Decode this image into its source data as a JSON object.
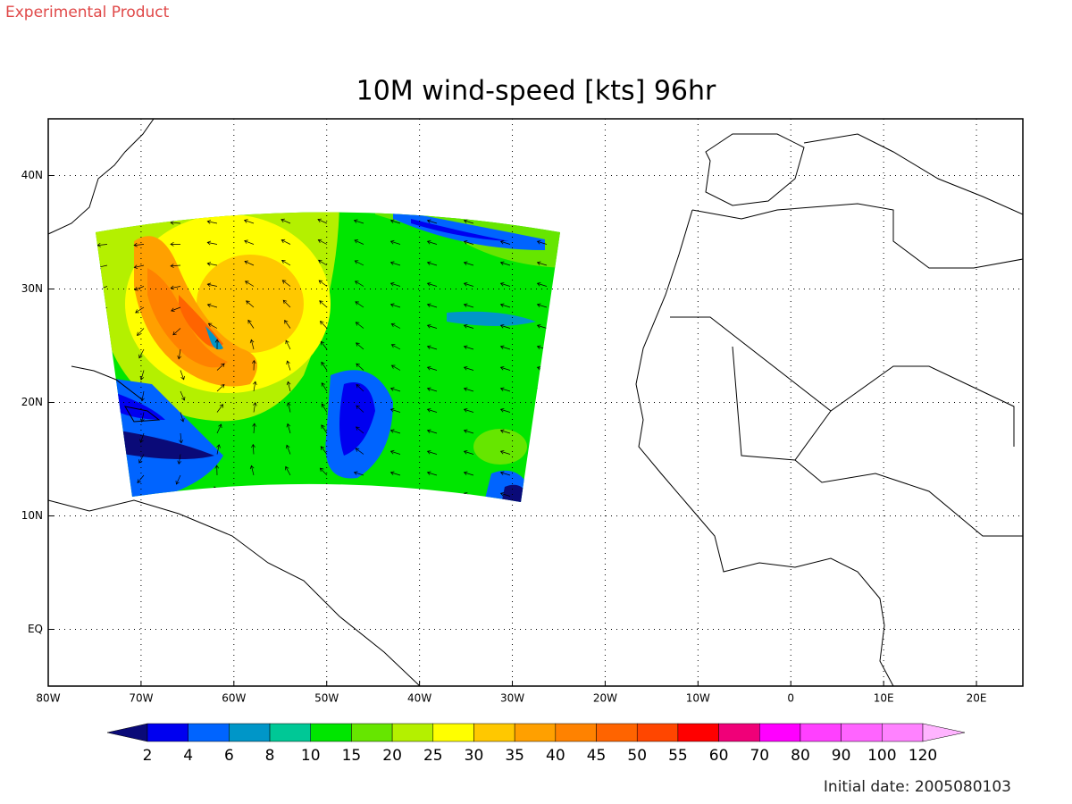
{
  "header": "Experimental Product",
  "title": "10M wind-speed [kts] 96hr",
  "map": {
    "lon_range": [
      -80,
      25
    ],
    "lat_range": [
      -5,
      45
    ],
    "lon_ticks": [
      {
        "value": -80,
        "label": "80W"
      },
      {
        "value": -70,
        "label": "70W"
      },
      {
        "value": -60,
        "label": "60W"
      },
      {
        "value": -50,
        "label": "50W"
      },
      {
        "value": -40,
        "label": "40W"
      },
      {
        "value": -30,
        "label": "30W"
      },
      {
        "value": -20,
        "label": "20W"
      },
      {
        "value": -10,
        "label": "10W"
      },
      0,
      {
        "value": 10,
        "label": "10E"
      },
      {
        "value": 20,
        "label": "20E"
      }
    ],
    "lat_ticks": [
      {
        "value": 0,
        "label": "EQ"
      },
      {
        "value": 10,
        "label": "10N"
      },
      {
        "value": 20,
        "label": "20N"
      },
      {
        "value": 30,
        "label": "30N"
      },
      {
        "value": 40,
        "label": "40N"
      }
    ]
  },
  "colorbar": {
    "levels": [
      2,
      4,
      6,
      8,
      10,
      15,
      20,
      25,
      30,
      35,
      40,
      45,
      50,
      55,
      60,
      70,
      80,
      90,
      100,
      120
    ],
    "colors": [
      "#0a0a78",
      "#0000f0",
      "#0064ff",
      "#0096c8",
      "#00c896",
      "#00e600",
      "#66e600",
      "#b4f000",
      "#ffff00",
      "#ffc800",
      "#ffa000",
      "#ff8200",
      "#ff6400",
      "#ff4600",
      "#ff0000",
      "#f00078",
      "#ff00ff",
      "#ff40ff",
      "#ff64ff",
      "#ff82ff",
      "#ffb4ff"
    ]
  },
  "footer": "Initial date: 2005080103"
}
